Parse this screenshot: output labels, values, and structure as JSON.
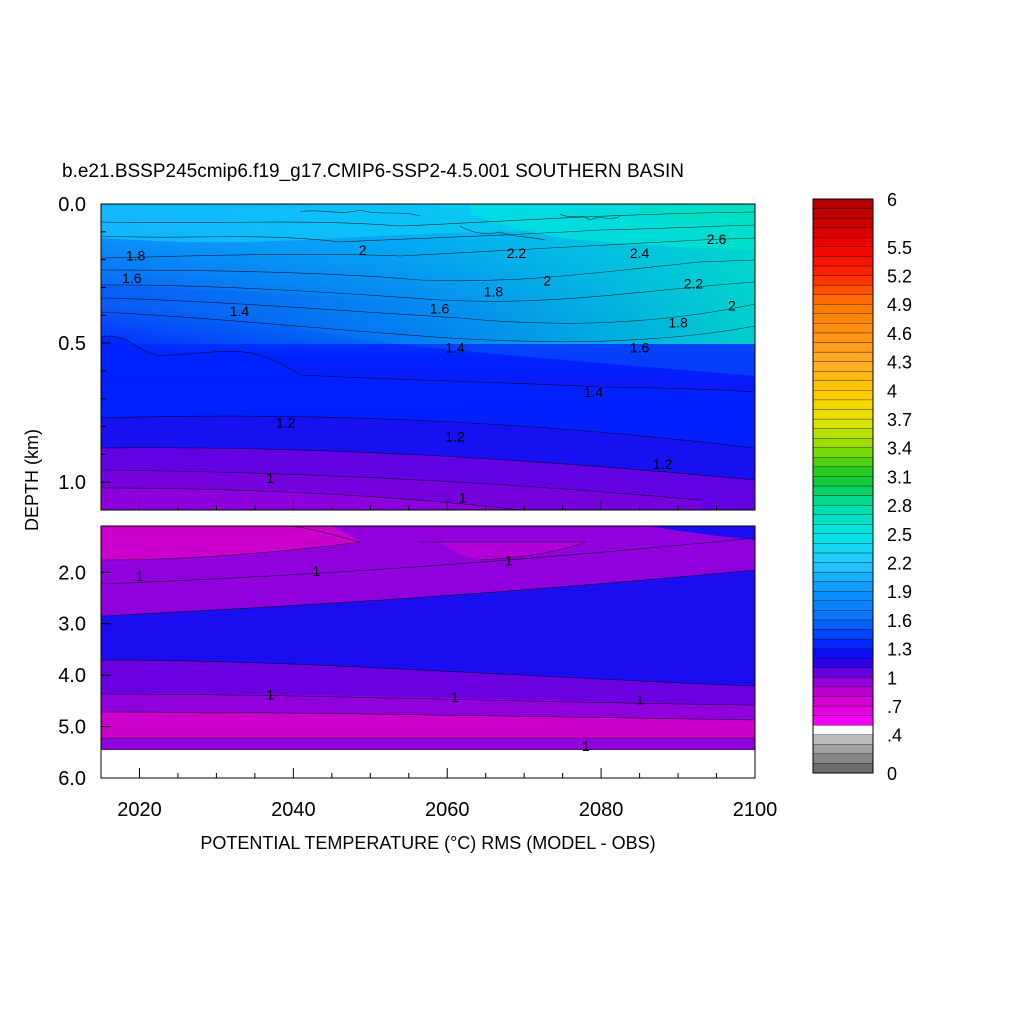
{
  "chart_data": {
    "type": "heatmap",
    "title": "b.e21.BSSP245cmip6.f19_g17.CMIP6-SSP2-4.5.001 SOUTHERN BASIN",
    "xlabel": "POTENTIAL TEMPERATURE (°C) RMS (MODEL - OBS)",
    "ylabel": "DEPTH (km)",
    "xlim": [
      2015,
      2100
    ],
    "upper_ylim": [
      0.0,
      1.1
    ],
    "lower_ylim": [
      1.1,
      6.0
    ],
    "x_ticks": [
      "2020",
      "2040",
      "2060",
      "2080",
      "2100"
    ],
    "upper_y_ticks": [
      "0.0",
      "0.5",
      "1.0"
    ],
    "lower_y_ticks": [
      "2.0",
      "3.0",
      "4.0",
      "5.0",
      "6.0"
    ],
    "colorbar": {
      "min": 0,
      "max": 6,
      "step": 0.1,
      "tick_labels": [
        "0",
        ".4",
        ".7",
        "1",
        "1.3",
        "1.6",
        "1.9",
        "2.2",
        "2.5",
        "2.8",
        "3.1",
        "3.4",
        "3.7",
        "4",
        "4.3",
        "4.6",
        "4.9",
        "5.2",
        "5.5",
        "6"
      ]
    },
    "contour_labels": [
      {
        "text": "1.8",
        "x": 2019.5,
        "depth": 0.19
      },
      {
        "text": "2",
        "x": 2049,
        "depth": 0.17
      },
      {
        "text": "2.2",
        "x": 2069,
        "depth": 0.18
      },
      {
        "text": "2.4",
        "x": 2085,
        "depth": 0.18
      },
      {
        "text": "2.6",
        "x": 2095,
        "depth": 0.13
      },
      {
        "text": "1.6",
        "x": 2019,
        "depth": 0.27
      },
      {
        "text": "1.8",
        "x": 2066,
        "depth": 0.32
      },
      {
        "text": "2",
        "x": 2073,
        "depth": 0.28
      },
      {
        "text": "2.2",
        "x": 2092,
        "depth": 0.29
      },
      {
        "text": "2",
        "x": 2097,
        "depth": 0.37
      },
      {
        "text": "1.4",
        "x": 2033,
        "depth": 0.39
      },
      {
        "text": "1.6",
        "x": 2059,
        "depth": 0.38
      },
      {
        "text": "1.8",
        "x": 2090,
        "depth": 0.43
      },
      {
        "text": "1.4",
        "x": 2061,
        "depth": 0.52
      },
      {
        "text": "1.6",
        "x": 2085,
        "depth": 0.52
      },
      {
        "text": "1.4",
        "x": 2079,
        "depth": 0.68
      },
      {
        "text": "1.2",
        "x": 2039,
        "depth": 0.79
      },
      {
        "text": "1.2",
        "x": 2061,
        "depth": 0.84
      },
      {
        "text": "1.2",
        "x": 2088,
        "depth": 0.94
      },
      {
        "text": "1",
        "x": 2037,
        "depth": 0.99
      },
      {
        "text": "1",
        "x": 2062,
        "depth": 1.06
      },
      {
        "text": "1",
        "x": 2020,
        "depth": 2.1
      },
      {
        "text": "1",
        "x": 2043,
        "depth": 2.0
      },
      {
        "text": "1",
        "x": 2068,
        "depth": 1.8
      },
      {
        "text": "1",
        "x": 2037,
        "depth": 4.4
      },
      {
        "text": "1",
        "x": 2061,
        "depth": 4.45
      },
      {
        "text": "1",
        "x": 2085,
        "depth": 4.5
      },
      {
        "text": "1",
        "x": 2078,
        "depth": 5.4
      }
    ],
    "colors": {
      "magenta": "#cc00cc",
      "violet": "#8f00dd",
      "indigo": "#6a00e0",
      "blue_deep": "#1a0ef0",
      "blue": "#0022ff",
      "blue_mid": "#0a55f5",
      "blue_light": "#0a88f8",
      "cyan": "#14b8ff",
      "turquoise": "#00e0e8",
      "aqua_green": "#00d8a8"
    }
  }
}
